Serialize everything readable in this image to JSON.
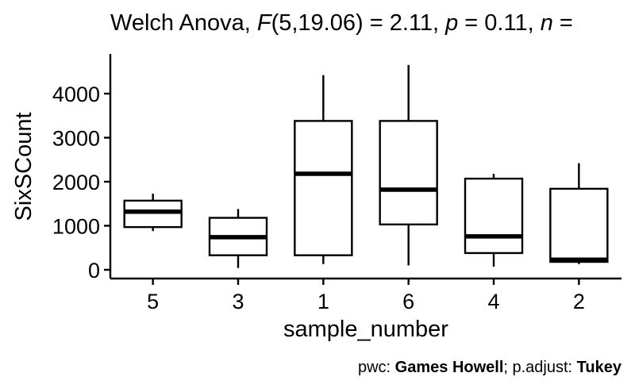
{
  "chart_data": {
    "type": "boxplot",
    "title": {
      "prefix": "Welch Anova, ",
      "stat_symbol": "F",
      "stat_value": "(5,19.06) = 2.11, ",
      "p_symbol": "p",
      "p_value": " = 0.11, ",
      "n_symbol": "n",
      "n_value": " ="
    },
    "xlabel": "sample_number",
    "ylabel": "SixSCount",
    "ylim": [
      -150,
      4800
    ],
    "yticks": [
      0,
      1000,
      2000,
      3000,
      4000
    ],
    "ytick_labels": [
      "0",
      "1000",
      "2000",
      "3000",
      "4000"
    ],
    "categories": [
      "5",
      "3",
      "1",
      "6",
      "4",
      "2"
    ],
    "boxes": [
      {
        "label": "5",
        "min": 880,
        "q1": 970,
        "median": 1320,
        "q3": 1570,
        "max": 1730
      },
      {
        "label": "3",
        "min": 40,
        "q1": 330,
        "median": 740,
        "q3": 1180,
        "max": 1380
      },
      {
        "label": "1",
        "min": 130,
        "q1": 330,
        "median": 2180,
        "q3": 3380,
        "max": 4420
      },
      {
        "label": "6",
        "min": 100,
        "q1": 1030,
        "median": 1820,
        "q3": 3380,
        "max": 4650
      },
      {
        "label": "4",
        "min": 70,
        "q1": 380,
        "median": 760,
        "q3": 2070,
        "max": 2180
      },
      {
        "label": "2",
        "min": 130,
        "q1": 180,
        "median": 230,
        "q3": 1840,
        "max": 2420
      }
    ],
    "grid": false,
    "legend": "none"
  },
  "caption": {
    "pwc_prefix": "pwc: ",
    "pwc_method": "Games Howell",
    "adjust_prefix": "; p.adjust: ",
    "adjust_method": "Tukey"
  }
}
